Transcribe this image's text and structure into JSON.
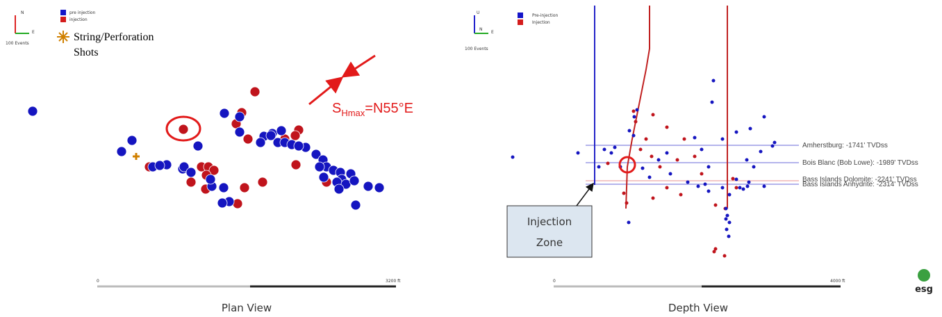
{
  "plan": {
    "axes": {
      "north": "N",
      "east": "E"
    },
    "events_note": "100 Events",
    "legend": {
      "pre": "pre injection",
      "inj": "injection",
      "shots": [
        "String/Perforation",
        "Shots"
      ]
    },
    "stress": {
      "main": "S",
      "sub": "Hmax",
      "rest": "=N55°E"
    },
    "scale": {
      "start": "0",
      "end": "3200 ft"
    },
    "caption": "Plan View"
  },
  "depth": {
    "axes": {
      "up": "U",
      "north": "N",
      "east": "E"
    },
    "events_note": "100 Events",
    "legend": {
      "pre": "Pre-injection",
      "inj": "Injection"
    },
    "formations": [
      "Amherstburg: -1741' TVDss",
      "Bois Blanc (Bob Lowe): -1989' TVDss",
      "Bass Islands Dolomite: -2241' TVDss",
      "Bass Islands Anhydrite: -2314' TVDss"
    ],
    "callout": [
      "Injection",
      "Zone"
    ],
    "scale": {
      "start": "0",
      "end": "4000 ft"
    },
    "caption": "Depth View"
  },
  "logo": "esg"
}
